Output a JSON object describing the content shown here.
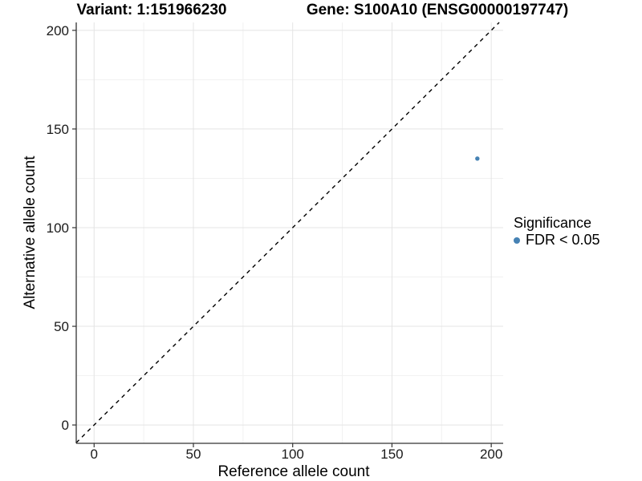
{
  "header": {
    "variant_title": "Variant: 1:151966230",
    "gene_title": "Gene: S100A10 (ENSG00000197747)"
  },
  "axes": {
    "x_label": "Reference allele count",
    "y_label": "Alternative allele count"
  },
  "legend": {
    "title": "Significance",
    "items": [
      {
        "label": "FDR < 0.05",
        "color": "#4682B4"
      }
    ]
  },
  "chart_data": {
    "type": "scatter",
    "title": "Variant: 1:151966230   Gene: S100A10 (ENSG00000197747)",
    "xlabel": "Reference allele count",
    "ylabel": "Alternative allele count",
    "xlim": [
      -9,
      206
    ],
    "ylim": [
      -9.3,
      204
    ],
    "x_major_ticks": [
      0,
      50,
      100,
      150,
      200
    ],
    "y_major_ticks": [
      0,
      50,
      100,
      150,
      200
    ],
    "x_minor_ticks": [
      25,
      75,
      125,
      175
    ],
    "y_minor_ticks": [
      25,
      75,
      125,
      175
    ],
    "grid": true,
    "legend_position": "right",
    "series": [
      {
        "name": "FDR < 0.05",
        "points": [
          {
            "x": 193,
            "y": 135
          }
        ],
        "color": "#4682B4"
      }
    ],
    "reference_line": {
      "kind": "identity",
      "slope": 1,
      "intercept": 0,
      "style": "dashed",
      "color": "#000000"
    },
    "colors": {
      "grid_major": "#E4E4E4",
      "grid_minor": "#F1F1F1",
      "axis_line": "#333333",
      "tick": "#333333",
      "tick_label": "#1a1a1a"
    }
  }
}
